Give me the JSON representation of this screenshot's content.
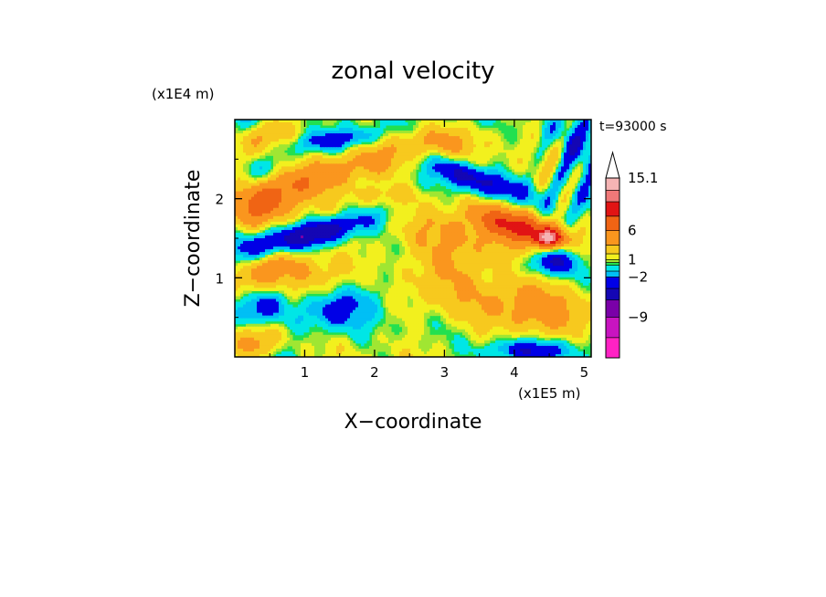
{
  "chart_data": {
    "type": "heatmap",
    "title": "zonal velocity",
    "xlabel": "X−coordinate",
    "ylabel": "Z−coordinate",
    "x_unit": "(x1E5 m)",
    "y_unit": "(x1E4 m)",
    "time_label": "t=93000 s",
    "x_ticks": [
      "1",
      "2",
      "3",
      "4",
      "5"
    ],
    "y_ticks": [
      "1",
      "2"
    ],
    "xlim": [
      0,
      5.1
    ],
    "ylim": [
      0,
      3.0
    ],
    "colorbar": {
      "labels": [
        "15.1",
        "6",
        "1",
        "−2",
        "−9"
      ],
      "label_values": [
        15.1,
        6,
        1,
        -2,
        -9
      ],
      "range": [
        -16,
        18
      ],
      "levels": [
        {
          "lo": -16,
          "hi": -12.5,
          "color": "#ff22c4"
        },
        {
          "lo": -12.5,
          "hi": -9,
          "color": "#c814c0"
        },
        {
          "lo": -9,
          "hi": -6,
          "color": "#7a00a8"
        },
        {
          "lo": -6,
          "hi": -4,
          "color": "#1406b4"
        },
        {
          "lo": -4,
          "hi": -2,
          "color": "#0000e6"
        },
        {
          "lo": -2,
          "hi": -1,
          "color": "#00bff5"
        },
        {
          "lo": -1,
          "hi": 0,
          "color": "#00e6e6"
        },
        {
          "lo": 0,
          "hi": 0.5,
          "color": "#22e050"
        },
        {
          "lo": 0.5,
          "hi": 1,
          "color": "#a0e632"
        },
        {
          "lo": 1,
          "hi": 2,
          "color": "#f2f01e"
        },
        {
          "lo": 2,
          "hi": 3.5,
          "color": "#f7c91e"
        },
        {
          "lo": 3.5,
          "hi": 6,
          "color": "#fa961e"
        },
        {
          "lo": 6,
          "hi": 8.5,
          "color": "#f06414"
        },
        {
          "lo": 8.5,
          "hi": 11,
          "color": "#e11414"
        },
        {
          "lo": 11,
          "hi": 13,
          "color": "#f07878"
        },
        {
          "lo": 13,
          "hi": 15.1,
          "color": "#f5b4b4"
        },
        {
          "lo": 15.1,
          "hi": 18,
          "color": "#ffffff"
        }
      ]
    },
    "features": [
      {
        "x": 1.1,
        "z": 1.55,
        "sx": 0.65,
        "sz": 0.12,
        "rot": 0.22,
        "v": -7
      },
      {
        "x": 3.45,
        "z": 2.25,
        "sx": 0.55,
        "sz": 0.12,
        "rot": -0.3,
        "v": -6
      },
      {
        "x": 3.2,
        "z": 1.35,
        "sx": 0.7,
        "sz": 0.45,
        "rot": 0.3,
        "v": 3.2
      },
      {
        "x": 4.1,
        "z": 1.65,
        "sx": 0.4,
        "sz": 0.13,
        "rot": -0.25,
        "v": 7
      },
      {
        "x": 4.5,
        "z": 1.5,
        "sx": 0.15,
        "sz": 0.08,
        "rot": 0,
        "v": 9
      },
      {
        "x": 4.55,
        "z": 1.2,
        "sx": 0.25,
        "sz": 0.12,
        "rot": 0,
        "v": -5
      },
      {
        "x": 1.5,
        "z": 0.65,
        "sx": 0.5,
        "sz": 0.2,
        "rot": 0.2,
        "v": -3.5
      },
      {
        "x": 1.3,
        "z": 1.1,
        "sx": 0.65,
        "sz": 0.3,
        "rot": 0,
        "v": 2.2
      },
      {
        "x": 1.3,
        "z": 2.3,
        "sx": 0.9,
        "sz": 0.16,
        "rot": 0.2,
        "v": 4.5
      },
      {
        "x": 1.5,
        "z": 2.75,
        "sx": 0.55,
        "sz": 0.1,
        "rot": 0.1,
        "v": -4.5
      },
      {
        "x": 2.0,
        "z": 1.05,
        "sx": 0.3,
        "sz": 0.25,
        "rot": 0,
        "v": -1.5
      },
      {
        "x": 4.3,
        "z": 0.6,
        "sx": 0.55,
        "sz": 0.3,
        "rot": 0,
        "v": 3.5
      },
      {
        "x": 4.2,
        "z": 0.08,
        "sx": 0.45,
        "sz": 0.1,
        "rot": 0,
        "v": -4.5
      },
      {
        "x": 2.85,
        "z": 2.75,
        "sx": 0.6,
        "sz": 0.15,
        "rot": 0,
        "v": 2.5
      },
      {
        "x": 0.5,
        "z": 1.9,
        "sx": 0.35,
        "sz": 0.45,
        "rot": 0,
        "v": 2.8
      },
      {
        "x": 3.0,
        "z": 0.35,
        "sx": 0.5,
        "sz": 0.25,
        "rot": 0,
        "v": 0.3
      },
      {
        "x": 2.1,
        "z": 2.05,
        "sx": 0.4,
        "sz": 0.1,
        "rot": 0,
        "v": 2
      },
      {
        "x": 4.95,
        "z": 2.5,
        "sx": 0.25,
        "sz": 0.45,
        "rot": 0,
        "v": -2.5
      }
    ]
  }
}
